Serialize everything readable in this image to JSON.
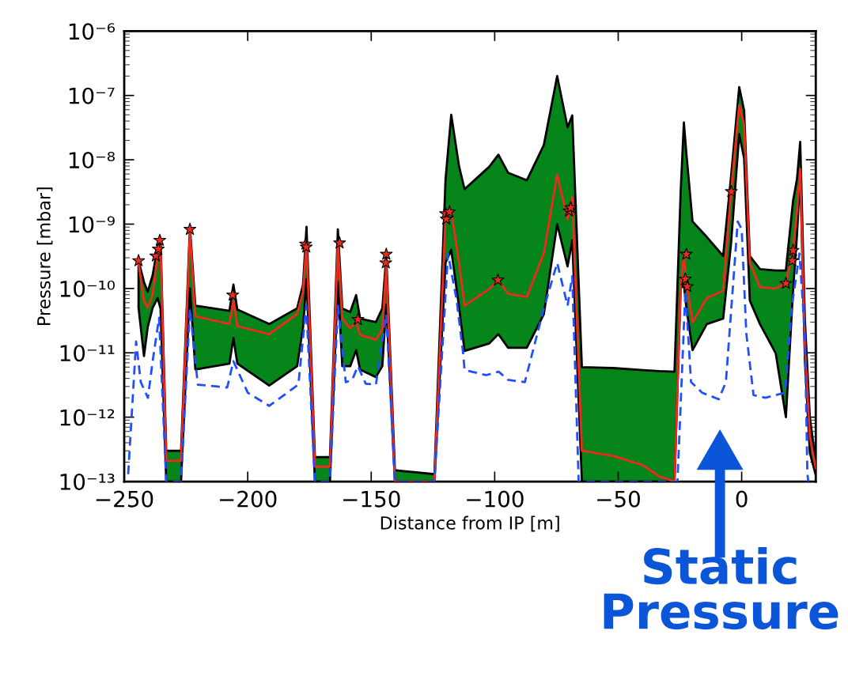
{
  "chart_data": {
    "type": "line",
    "log": "y",
    "xlabel": "Distance from IP [m]",
    "ylabel": "Pressure [mbar]",
    "xlim": [
      -250,
      30
    ],
    "xticks": [
      {
        "value": -250,
        "label": "−250"
      },
      {
        "value": -200,
        "label": "−200"
      },
      {
        "value": -150,
        "label": "−150"
      },
      {
        "value": -100,
        "label": "−100"
      },
      {
        "value": -50,
        "label": "−50"
      },
      0
    ],
    "ylim": [
      1e-13,
      1e-06
    ],
    "yticks": [
      {
        "value": 1e-13,
        "label": "10⁻¹³"
      },
      {
        "value": 1e-12,
        "label": "10⁻¹²"
      },
      {
        "value": 1e-11,
        "label": "10⁻¹¹"
      },
      {
        "value": 1e-10,
        "label": "10⁻¹⁰"
      },
      {
        "value": 1e-09,
        "label": "10⁻⁹"
      },
      {
        "value": 1e-08,
        "label": "10⁻⁸"
      },
      {
        "value": 1e-07,
        "label": "10⁻⁷"
      },
      {
        "value": 1e-06,
        "label": "10⁻⁶"
      }
    ],
    "grid": false,
    "series": [
      {
        "color": "#ee2a1f",
        "marker": "none",
        "line_style": "solid",
        "x": [
          -244.2,
          -242,
          -240.5,
          -238.5,
          -236.5,
          -235.3,
          -233,
          -227,
          -223.4,
          -221.2,
          -207.4,
          -205.8,
          -204.2,
          -191.3,
          -180,
          -177.6,
          -176.2,
          -172.8,
          -166.7,
          -163.5,
          -161.7,
          -158.5,
          -156.1,
          -154.5,
          -148.1,
          -145.5,
          -143.9,
          -140.4,
          -124.4,
          -119.9,
          -117.6,
          -114.4,
          -112.2,
          -102.2,
          -98.5,
          -94.6,
          -87,
          -80.1,
          -74.7,
          -70.5,
          -68.6,
          -64.7,
          -52,
          -40,
          -33.3,
          -27.2,
          -24.7,
          -23.4,
          -22.4,
          -19.9,
          -14.1,
          -7.5,
          -4.3,
          -1.0,
          1.0,
          3.3,
          7.4,
          13.8,
          17.9,
          20.8,
          22.4,
          23.7,
          25.6,
          27.6,
          30
        ],
        "values": [
          2.5e-10,
          6.3e-11,
          5e-11,
          7.9e-11,
          3.2e-10,
          4.5e-10,
          2.1e-13,
          2.1e-13,
          7.6e-10,
          3.7e-11,
          2.8e-11,
          6.5e-11,
          2.6e-11,
          1.95e-11,
          4e-11,
          8.9e-11,
          5.1e-10,
          1.7e-13,
          1.7e-13,
          5.1e-10,
          3.4e-11,
          2.4e-11,
          3e-11,
          1.9e-11,
          1.6e-11,
          2.3e-11,
          2.2e-10,
          1e-13,
          1e-13,
          1.35e-09,
          1.6e-09,
          2.5e-10,
          5.4e-11,
          9.8e-11,
          1.35e-10,
          8.3e-11,
          7.4e-11,
          3.5e-10,
          5.9e-09,
          1.2e-09,
          2.6e-09,
          3e-13,
          2.5e-13,
          1.8e-13,
          1.2e-13,
          1e-13,
          1.1e-10,
          3.2e-10,
          1.26e-10,
          3e-11,
          7.1e-11,
          9.3e-11,
          3.2e-09,
          7.1e-08,
          3.5e-08,
          2.5e-10,
          1.05e-10,
          1e-10,
          1.2e-10,
          3.9e-10,
          1.6e-09,
          7.2e-09,
          1.26e-11,
          5e-13,
          1.6e-13
        ],
        "lower": [
          5e-11,
          8.9e-12,
          2.5e-11,
          5e-11,
          7.1e-11,
          4.9e-11,
          1e-13,
          1e-13,
          1e-10,
          5.5e-12,
          6.8e-12,
          1.7e-11,
          6.8e-12,
          3.1e-12,
          6.2e-12,
          2.5e-11,
          1.4e-10,
          1e-13,
          1e-13,
          1.26e-10,
          6.2e-12,
          6.2e-12,
          1.1e-11,
          5.5e-12,
          4.2e-12,
          6.2e-12,
          5.6e-11,
          1e-13,
          1e-13,
          2.5e-10,
          4e-10,
          5e-11,
          1.07e-11,
          1.4e-11,
          1.95e-11,
          1.2e-11,
          1.2e-11,
          4e-11,
          1e-09,
          2.2e-10,
          5.6e-10,
          1e-13,
          1e-13,
          1e-13,
          1e-13,
          1e-13,
          1e-10,
          1.15e-10,
          5e-11,
          1.1e-11,
          2.8e-11,
          3.4e-11,
          5e-10,
          2.5e-08,
          1.05e-08,
          6.5e-11,
          2.8e-11,
          9.8e-12,
          1e-12,
          9.3e-11,
          6.8e-10,
          6.6e-09,
          7.4e-12,
          2.8e-13,
          1.26e-13
        ],
        "upper": [
          2.7e-10,
          1.26e-10,
          8.9e-11,
          1.6e-10,
          4.5e-10,
          5.8e-10,
          3e-13,
          3e-13,
          9.1e-10,
          5.4e-11,
          4.5e-11,
          1.15e-10,
          4.7e-11,
          2.8e-11,
          4.9e-11,
          1.15e-10,
          9.1e-10,
          2.4e-13,
          2.4e-13,
          8.3e-10,
          4.9e-11,
          4.3e-11,
          7.9e-11,
          3.4e-11,
          3e-11,
          4.9e-11,
          3.2e-10,
          1.5e-13,
          1.3e-13,
          5e-09,
          5e-08,
          7.8e-09,
          3.5e-09,
          7.8e-09,
          1.2e-08,
          6.3e-09,
          4.8e-09,
          1.7e-08,
          2e-07,
          3.2e-08,
          4.9e-08,
          6e-12,
          5.8e-12,
          5.4e-12,
          5.2e-12,
          5.1e-12,
          3.2e-09,
          3.8e-08,
          1.26e-08,
          1.1e-09,
          6.3e-10,
          3.2e-10,
          5.5e-09,
          1.35e-07,
          5.8e-08,
          3.2e-10,
          2e-10,
          1.9e-10,
          1.9e-10,
          2.3e-09,
          5e-09,
          1.9e-08,
          3.2e-11,
          1e-12,
          2e-13
        ]
      },
      {
        "color": "#1f4fff",
        "marker": "none",
        "line_style": "dashed",
        "x": [
          -248.4,
          -245.2,
          -243.3,
          -240.4,
          -238.5,
          -235.9,
          -233,
          -227,
          -223.4,
          -220.2,
          -208.3,
          -205.8,
          -200,
          -191.3,
          -179.5,
          -176.3,
          -172.8,
          -166.7,
          -163.5,
          -160.3,
          -157.7,
          -155.4,
          -152.2,
          -148.1,
          -143.9,
          -140.4,
          -124.4,
          -118.9,
          -115.4,
          -112.8,
          -112.2,
          -103.5,
          -98.4,
          -94.6,
          -87.8,
          -80.1,
          -74.7,
          -70.5,
          -68.6,
          -66,
          -26,
          -22.8,
          -20.5,
          -16,
          -9.3,
          -6.4,
          -1.6,
          0,
          1.9,
          4.8,
          9.6,
          17.6,
          20.2,
          23.4,
          25.6,
          26.6,
          27
        ],
        "values": [
          1.3e-13,
          1.5e-11,
          3.5e-12,
          2e-12,
          7.4e-12,
          3.5e-11,
          1e-13,
          1e-13,
          4.9e-11,
          3.2e-12,
          2.9e-12,
          7.4e-12,
          2.4e-12,
          1.5e-12,
          3.2e-12,
          5.4e-11,
          1e-13,
          1e-13,
          5.4e-11,
          3.5e-12,
          3.8e-12,
          6.2e-12,
          3.3e-12,
          3.2e-12,
          4e-11,
          1e-13,
          1e-13,
          3.5e-10,
          6.5e-11,
          1e-11,
          5.4e-12,
          4.5e-12,
          5.1e-12,
          3.8e-12,
          3.5e-12,
          4.9e-11,
          2.5e-10,
          5.4e-11,
          1.55e-10,
          1e-13,
          1e-13,
          9.3e-11,
          3.5e-12,
          2.4e-12,
          1.9e-12,
          3.5e-12,
          1.1e-09,
          8.3e-10,
          1.95e-11,
          2.2e-12,
          2e-12,
          2.4e-12,
          4.9e-11,
          3.5e-10,
          1.95e-11,
          1.3e-13,
          1e-13
        ]
      },
      {
        "type": "scatter",
        "color": "#ee2a1f",
        "marker": "star",
        "x": [
          -244.2,
          -237.2,
          -236.2,
          -235.6,
          -223.4,
          -206.1,
          -176.6,
          -176.3,
          -162.8,
          -155.4,
          -143.9,
          -144.1,
          -119.9,
          -119.6,
          -118.3,
          -98.7,
          -69.9,
          -69.2,
          -22.4,
          -22.8,
          -22.0,
          -4.2,
          17.9,
          20.5,
          20.8
        ],
        "values": [
          2.7e-10,
          3.2e-10,
          4.1e-10,
          5.6e-10,
          8.3e-10,
          7.9e-11,
          4.9e-10,
          4.4e-10,
          5.1e-10,
          3.3e-11,
          3.4e-10,
          2.5e-10,
          1.45e-09,
          1.2e-09,
          1.55e-09,
          1.35e-10,
          1.6e-09,
          1.8e-09,
          3.4e-10,
          1.4e-10,
          1.07e-10,
          3.2e-09,
          1.2e-10,
          2.7e-10,
          3.9e-10
        ]
      }
    ],
    "annotations": [
      "Static\nPressure"
    ]
  }
}
